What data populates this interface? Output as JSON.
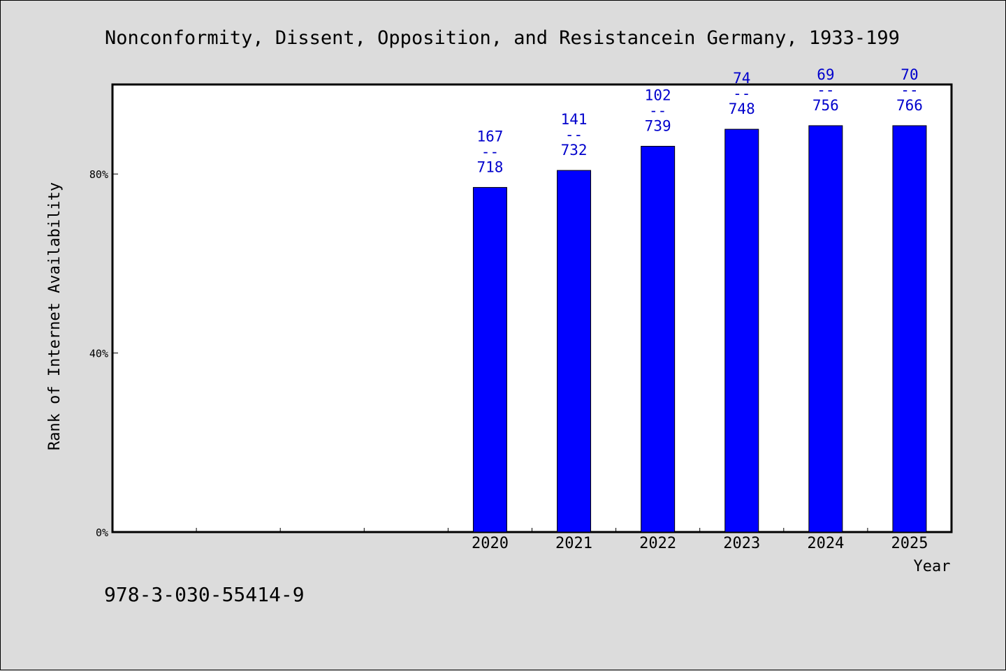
{
  "footer": {
    "isbn": "978-3-030-55414-9"
  },
  "colors": {
    "bar": "#0000ff",
    "label": "#0000cc",
    "background": "#dcdcdc",
    "plot": "#ffffff"
  },
  "chart_data": {
    "type": "bar",
    "title": "Nonconformity, Dissent, Opposition, and Resistancein Germany, 1933-199",
    "xlabel": "Year",
    "ylabel": "Rank of Internet Availability",
    "ylim": [
      0,
      100
    ],
    "yticks": [
      0,
      40,
      80
    ],
    "ytick_labels": [
      "0%",
      "40%",
      "80%"
    ],
    "grid": false,
    "x_slots": 10,
    "categories": [
      "2020",
      "2021",
      "2022",
      "2023",
      "2024",
      "2025"
    ],
    "category_slots": [
      5,
      6,
      7,
      8,
      9,
      10
    ],
    "values": [
      77.0,
      80.8,
      86.2,
      90.0,
      90.8,
      90.8
    ],
    "data_labels": [
      [
        "167",
        "--",
        "718"
      ],
      [
        "141",
        "--",
        "732"
      ],
      [
        "102",
        "--",
        "739"
      ],
      [
        "74",
        "--",
        "748"
      ],
      [
        "69",
        "--",
        "756"
      ],
      [
        "70",
        "--",
        "766"
      ]
    ]
  }
}
